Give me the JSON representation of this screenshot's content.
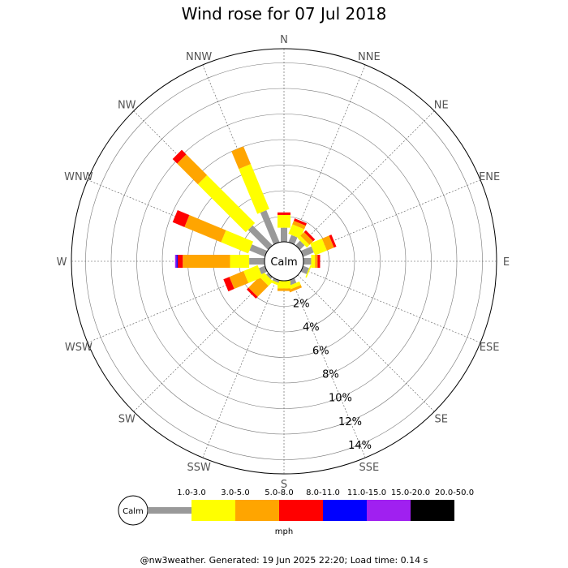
{
  "chart_data": {
    "type": "wind-rose",
    "title": "Wind rose for 07 Jul 2018",
    "calm_label": "Calm",
    "directions": [
      "N",
      "NNE",
      "NE",
      "ENE",
      "E",
      "ESE",
      "SE",
      "SSE",
      "S",
      "SSW",
      "SW",
      "WSW",
      "W",
      "WNW",
      "NW",
      "NNW"
    ],
    "ring_values": [
      2,
      4,
      6,
      8,
      10,
      12,
      14
    ],
    "ring_labels": [
      "2%",
      "4%",
      "6%",
      "8%",
      "10%",
      "12%",
      "14%"
    ],
    "unit": "mph",
    "speed_bins": [
      {
        "label": "1.0-3.0",
        "color": "#999999"
      },
      {
        "label": "3.0-5.0",
        "color": "#ffff00"
      },
      {
        "label": "5.0-8.0",
        "color": "#ffa500"
      },
      {
        "label": "8.0-11.0",
        "color": "#ff0000"
      },
      {
        "label": "11.0-15.0",
        "color": "#0000ff"
      },
      {
        "label": "15.0-20.0",
        "color": "#a020f0"
      },
      {
        "label": "20.0-50.0",
        "color": "#000000"
      }
    ],
    "series_by_direction": {
      "N": [
        1.1,
        1.0,
        0,
        0.2,
        0,
        0,
        0
      ],
      "NNE": [
        0.6,
        0.8,
        0.3,
        0.2,
        0,
        0,
        0
      ],
      "NE": [
        0.5,
        0.3,
        0.4,
        0.2,
        0,
        0,
        0
      ],
      "ENE": [
        0.9,
        1.0,
        0.6,
        0.2,
        0,
        0,
        0
      ],
      "E": [
        0.6,
        0.3,
        0.2,
        0.2,
        0,
        0,
        0
      ],
      "ESE": [
        0.5,
        0.1,
        0,
        0,
        0,
        0,
        0
      ],
      "SE": [
        0,
        0,
        0,
        0,
        0,
        0,
        0
      ],
      "SSE": [
        0.4,
        0.3,
        0.2,
        0,
        0,
        0,
        0
      ],
      "S": [
        0,
        0.6,
        0.2,
        0,
        0,
        0,
        0
      ],
      "SSW": [
        0.2,
        0.2,
        0,
        0,
        0,
        0,
        0
      ],
      "SW": [
        0.2,
        0.5,
        1.2,
        0.2,
        0,
        0,
        0
      ],
      "WSW": [
        0.5,
        1.2,
        1.2,
        0.5,
        0,
        0,
        0
      ],
      "W": [
        1.2,
        1.5,
        3.7,
        0.4,
        0.1,
        0.1,
        0
      ],
      "WNW": [
        1.3,
        2.3,
        3.1,
        1.0,
        0,
        0,
        0
      ],
      "NW": [
        2.2,
        5.3,
        2.3,
        0.5,
        0,
        0,
        0
      ],
      "NNW": [
        2.7,
        3.8,
        1.5,
        0,
        0,
        0,
        0
      ]
    }
  },
  "footer_text": "@nw3weather. Generated: 19 Jun 2025 22:20; Load time: 0.14 s"
}
